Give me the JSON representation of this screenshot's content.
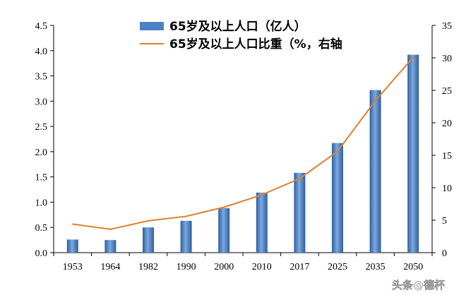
{
  "chart_data": {
    "type": "bar+line",
    "categories": [
      "1953",
      "1964",
      "1982",
      "1990",
      "2000",
      "2010",
      "2017",
      "2025",
      "2035",
      "2050"
    ],
    "series": [
      {
        "name": "65岁及以上人口（亿人）",
        "type": "bar",
        "axis": "left",
        "color": "#4a82c4",
        "values": [
          0.26,
          0.25,
          0.5,
          0.63,
          0.88,
          1.19,
          1.58,
          2.17,
          3.22,
          3.92
        ]
      },
      {
        "name": "65岁及以上人口比重（%，右轴",
        "type": "line",
        "axis": "right",
        "color": "#e07f2c",
        "values": [
          4.4,
          3.6,
          4.9,
          5.6,
          7.0,
          8.9,
          11.4,
          15.6,
          23.4,
          30.1
        ]
      }
    ],
    "y_left": {
      "range": [
        0,
        4.5
      ],
      "ticks": [
        "0.0",
        "0.5",
        "1.0",
        "1.5",
        "2.0",
        "2.5",
        "3.0",
        "3.5",
        "4.0",
        "4.5"
      ]
    },
    "y_right": {
      "range": [
        0,
        35
      ],
      "ticks": [
        "0",
        "5",
        "10",
        "15",
        "20",
        "25",
        "30",
        "35"
      ]
    },
    "legend_position": "top-center",
    "grid": false
  },
  "watermark": "头条@德杯"
}
